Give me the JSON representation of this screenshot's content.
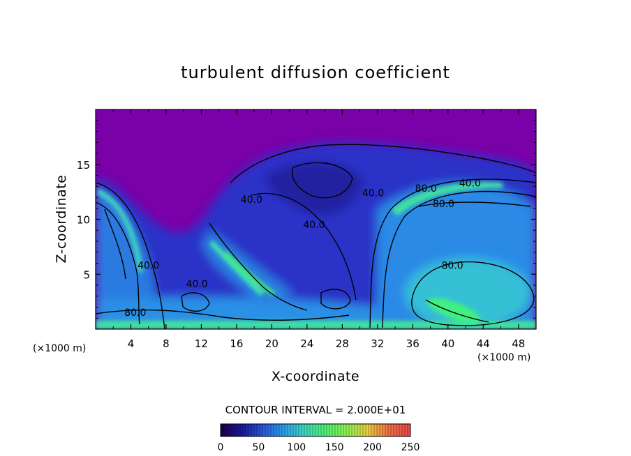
{
  "chart_data": {
    "type": "heatmap",
    "title": "turbulent diffusion coefficient",
    "xlabel": "X-coordinate",
    "ylabel": "Z-coordinate",
    "x_unit": "(×1000 m)",
    "y_unit": "(×1000 m)",
    "xlim": [
      0,
      50
    ],
    "ylim": [
      0,
      20
    ],
    "x_ticks": [
      4,
      8,
      12,
      16,
      20,
      24,
      28,
      32,
      36,
      40,
      44,
      48
    ],
    "y_ticks": [
      5,
      10,
      15
    ],
    "contour_interval_text": "CONTOUR INTERVAL = 2.000E+01",
    "contour_labels": [
      {
        "text": "40.0",
        "x": 17.7,
        "z": 11.5
      },
      {
        "text": "40.0",
        "x": 24.8,
        "z": 9.2
      },
      {
        "text": "40.0",
        "x": 31.5,
        "z": 12.1
      },
      {
        "text": "80.0",
        "x": 37.5,
        "z": 12.5
      },
      {
        "text": "40.0",
        "x": 42.5,
        "z": 13.0
      },
      {
        "text": "80.0",
        "x": 39.5,
        "z": 11.1
      },
      {
        "text": "80.0",
        "x": 40.5,
        "z": 5.5
      },
      {
        "text": "40.0",
        "x": 6.0,
        "z": 5.5
      },
      {
        "text": "40.0",
        "x": 11.5,
        "z": 3.8
      },
      {
        "text": "80.0",
        "x": 4.5,
        "z": 1.2
      }
    ],
    "colorbar": {
      "min": 0,
      "max": 250,
      "ticks": [
        0,
        50,
        100,
        150,
        200,
        250
      ],
      "colors": [
        "#1a0050",
        "#1a1aa0",
        "#2a5ad8",
        "#2aa0ea",
        "#40d8c0",
        "#50f070",
        "#90f050",
        "#e8d040",
        "#f07040",
        "#e84848"
      ]
    },
    "colors": {
      "background_field": "#7a00a8",
      "low": "#2a0a8a",
      "mid": "#2a7ae0",
      "high": "#3ae0c0",
      "peak": "#40f060"
    }
  }
}
